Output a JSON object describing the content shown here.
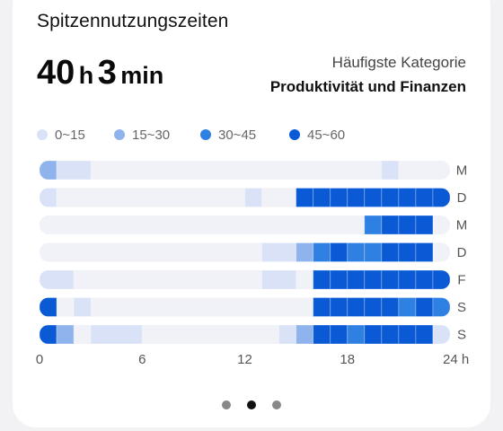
{
  "card": {
    "title": "Spitzennutzungszeiten",
    "total_value1": "40",
    "total_unit1": "h",
    "total_value2": "3",
    "total_unit2": "min",
    "top_category_label": "Häufigste Kategorie",
    "top_category_value": "Produktivität und Finanzen"
  },
  "colors": {
    "track": "#f0f2f7",
    "level1": "#d9e2f7",
    "level2": "#8fb3ec",
    "level3": "#2f80e3",
    "level4": "#0a5ad6",
    "axis_text": "#555555"
  },
  "pager": {
    "pages": 3,
    "active_index": 1,
    "active_color": "#111111",
    "inactive_color": "#888888"
  },
  "chart_data": {
    "type": "heatmap",
    "legend": [
      "0~15",
      "15~30",
      "30~45",
      "45~60"
    ],
    "x_ticks": [
      "0",
      "6",
      "12",
      "18",
      "24 h"
    ],
    "x_range": [
      0,
      24
    ],
    "rows": [
      {
        "day": "M",
        "cells": [
          [
            0,
            1,
            2
          ],
          [
            1,
            3,
            1
          ],
          [
            20,
            21,
            1
          ]
        ]
      },
      {
        "day": "D",
        "cells": [
          [
            0,
            1,
            1
          ],
          [
            12,
            13,
            1
          ],
          [
            15,
            16,
            4
          ],
          [
            16,
            17,
            4
          ],
          [
            17,
            18,
            4
          ],
          [
            18,
            19,
            4
          ],
          [
            19,
            20,
            4
          ],
          [
            20,
            21,
            4
          ],
          [
            21,
            22,
            4
          ],
          [
            22,
            23,
            4
          ],
          [
            23,
            24,
            4
          ]
        ]
      },
      {
        "day": "M",
        "cells": [
          [
            19,
            20,
            3
          ],
          [
            20,
            21,
            4
          ],
          [
            21,
            22,
            4
          ],
          [
            22,
            23,
            4
          ]
        ]
      },
      {
        "day": "D",
        "cells": [
          [
            13,
            15,
            1
          ],
          [
            15,
            16,
            2
          ],
          [
            16,
            17,
            3
          ],
          [
            17,
            18,
            4
          ],
          [
            18,
            19,
            3
          ],
          [
            19,
            20,
            3
          ],
          [
            20,
            21,
            4
          ],
          [
            21,
            22,
            4
          ],
          [
            22,
            23,
            4
          ]
        ]
      },
      {
        "day": "F",
        "cells": [
          [
            0,
            2,
            1
          ],
          [
            13,
            15,
            1
          ],
          [
            16,
            17,
            4
          ],
          [
            17,
            18,
            4
          ],
          [
            18,
            19,
            4
          ],
          [
            19,
            20,
            4
          ],
          [
            20,
            21,
            4
          ],
          [
            21,
            22,
            4
          ],
          [
            22,
            23,
            4
          ],
          [
            23,
            24,
            4
          ]
        ]
      },
      {
        "day": "S",
        "cells": [
          [
            0,
            1,
            4
          ],
          [
            2,
            3,
            1
          ],
          [
            16,
            17,
            4
          ],
          [
            17,
            18,
            4
          ],
          [
            18,
            19,
            4
          ],
          [
            19,
            20,
            4
          ],
          [
            20,
            21,
            4
          ],
          [
            21,
            22,
            3
          ],
          [
            22,
            23,
            4
          ],
          [
            23,
            24,
            3
          ]
        ]
      },
      {
        "day": "S",
        "cells": [
          [
            0,
            1,
            4
          ],
          [
            1,
            2,
            2
          ],
          [
            3,
            6,
            1
          ],
          [
            14,
            15,
            1
          ],
          [
            15,
            16,
            2
          ],
          [
            16,
            17,
            4
          ],
          [
            17,
            18,
            4
          ],
          [
            18,
            19,
            3
          ],
          [
            19,
            20,
            4
          ],
          [
            20,
            21,
            4
          ],
          [
            21,
            22,
            4
          ],
          [
            22,
            23,
            4
          ],
          [
            23,
            24,
            1
          ]
        ]
      }
    ]
  }
}
